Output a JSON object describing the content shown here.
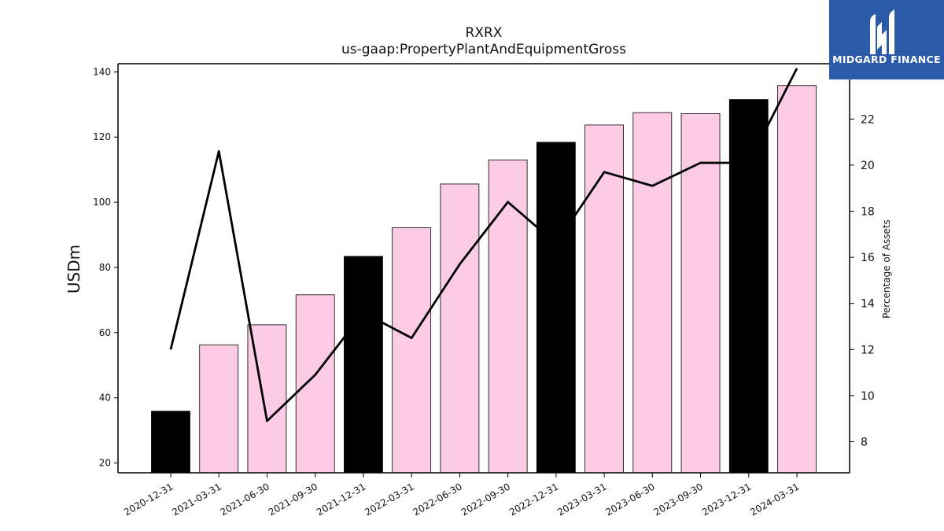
{
  "title": "RXRX",
  "subtitle": "us-gaap:PropertyPlantAndEquipmentGross",
  "logo": {
    "text": "MIDGARD FINANCE",
    "color": "#2b5aa8"
  },
  "chart_data": {
    "type": "bar",
    "categories": [
      "2020-12-31",
      "2021-03-31",
      "2021-06-30",
      "2021-09-30",
      "2021-12-31",
      "2022-03-31",
      "2022-06-30",
      "2022-09-30",
      "2022-12-31",
      "2023-03-31",
      "2023-06-30",
      "2023-09-30",
      "2023-12-31",
      "2024-03-31"
    ],
    "series": [
      {
        "axis": "left",
        "kind": "bar",
        "values": [
          35.9,
          56.2,
          62.4,
          71.6,
          83.4,
          92.2,
          105.6,
          113.0,
          118.4,
          123.7,
          127.5,
          127.2,
          131.5,
          135.8
        ],
        "colors": [
          "#000000",
          "#fccce6",
          "#fccce6",
          "#fccce6",
          "#000000",
          "#fccce6",
          "#fccce6",
          "#fccce6",
          "#000000",
          "#fccce6",
          "#fccce6",
          "#fccce6",
          "#000000",
          "#fccce6"
        ]
      },
      {
        "axis": "right",
        "kind": "line",
        "color": "#000000",
        "values": [
          12.0,
          20.6,
          8.9,
          10.9,
          13.6,
          12.5,
          15.7,
          18.4,
          16.6,
          19.7,
          19.1,
          20.1,
          20.1,
          24.2
        ]
      }
    ],
    "ylabel": "USDm",
    "ylabel_right": "Percentage of Assets",
    "ylim": [
      17,
      142.5
    ],
    "ylim_right": [
      6.65,
      24.4
    ],
    "yticks": [
      20,
      40,
      60,
      80,
      100,
      120,
      140
    ],
    "yticks_right": [
      8,
      10,
      12,
      14,
      16,
      18,
      20,
      22
    ],
    "grid": false,
    "legend": "none"
  }
}
